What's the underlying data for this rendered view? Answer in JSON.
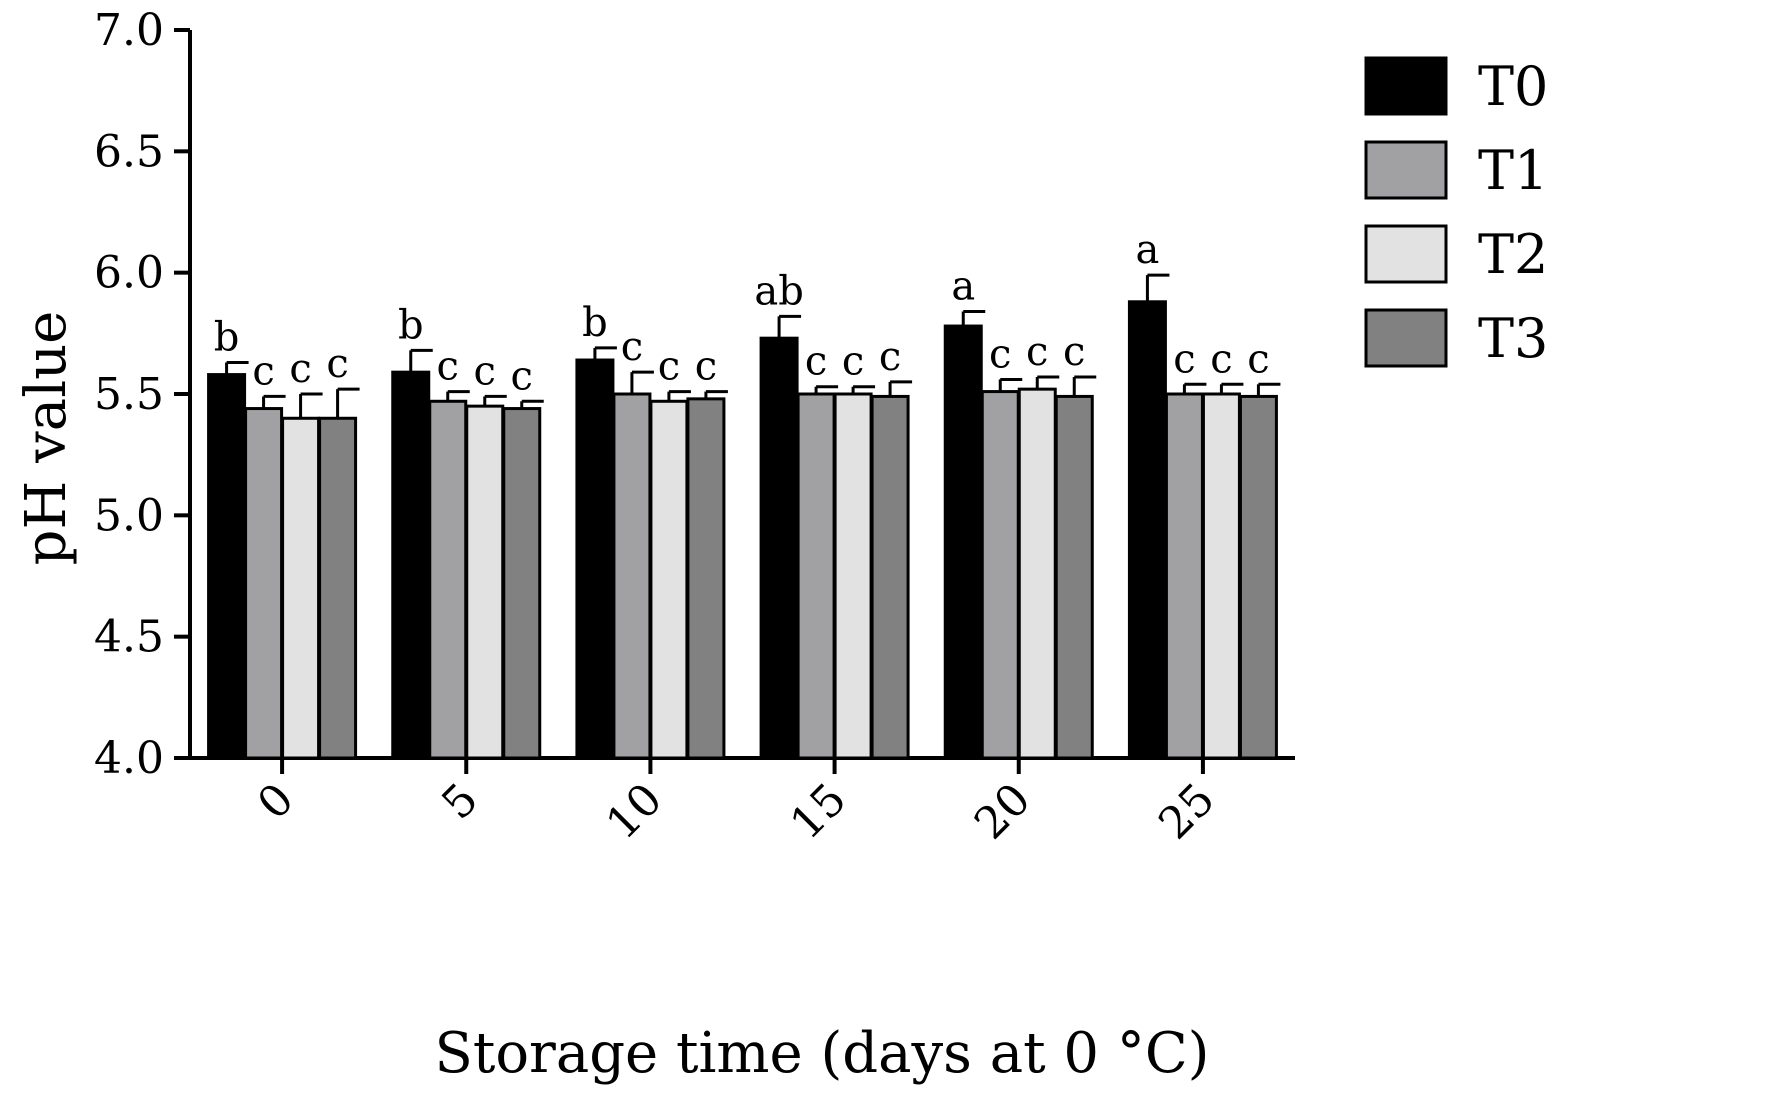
{
  "chart_data": {
    "type": "bar",
    "xlabel": "Storage time (days at 0 °C)",
    "ylabel": "pH value",
    "ylim": [
      4.0,
      7.0
    ],
    "yticks": [
      "4.0",
      "4.5",
      "5.0",
      "5.5",
      "6.0",
      "6.5",
      "7.0"
    ],
    "categories": [
      "0",
      "5",
      "10",
      "15",
      "20",
      "25"
    ],
    "legend_position": "top-right",
    "series": [
      {
        "name": "T0",
        "color": "#000000",
        "values": [
          5.58,
          5.59,
          5.64,
          5.73,
          5.78,
          5.88
        ],
        "errors": [
          0.05,
          0.09,
          0.05,
          0.09,
          0.06,
          0.11
        ],
        "labels": [
          "b",
          "b",
          "b",
          "ab",
          "a",
          "a"
        ]
      },
      {
        "name": "T1",
        "color": "#a1a1a4",
        "values": [
          5.44,
          5.47,
          5.5,
          5.5,
          5.51,
          5.5
        ],
        "errors": [
          0.05,
          0.04,
          0.09,
          0.03,
          0.05,
          0.04
        ],
        "labels": [
          "c",
          "c",
          "c",
          "c",
          "c",
          "c"
        ]
      },
      {
        "name": "T2",
        "color": "#e2e2e2",
        "values": [
          5.4,
          5.45,
          5.47,
          5.5,
          5.52,
          5.5
        ],
        "errors": [
          0.1,
          0.04,
          0.04,
          0.03,
          0.05,
          0.04
        ],
        "labels": [
          "c",
          "c",
          "c",
          "c",
          "c",
          "c"
        ]
      },
      {
        "name": "T3",
        "color": "#818181",
        "values": [
          5.4,
          5.44,
          5.48,
          5.49,
          5.49,
          5.49
        ],
        "errors": [
          0.12,
          0.03,
          0.03,
          0.06,
          0.08,
          0.05
        ],
        "labels": [
          "c",
          "c",
          "c",
          "c",
          "c",
          "c"
        ]
      }
    ]
  }
}
